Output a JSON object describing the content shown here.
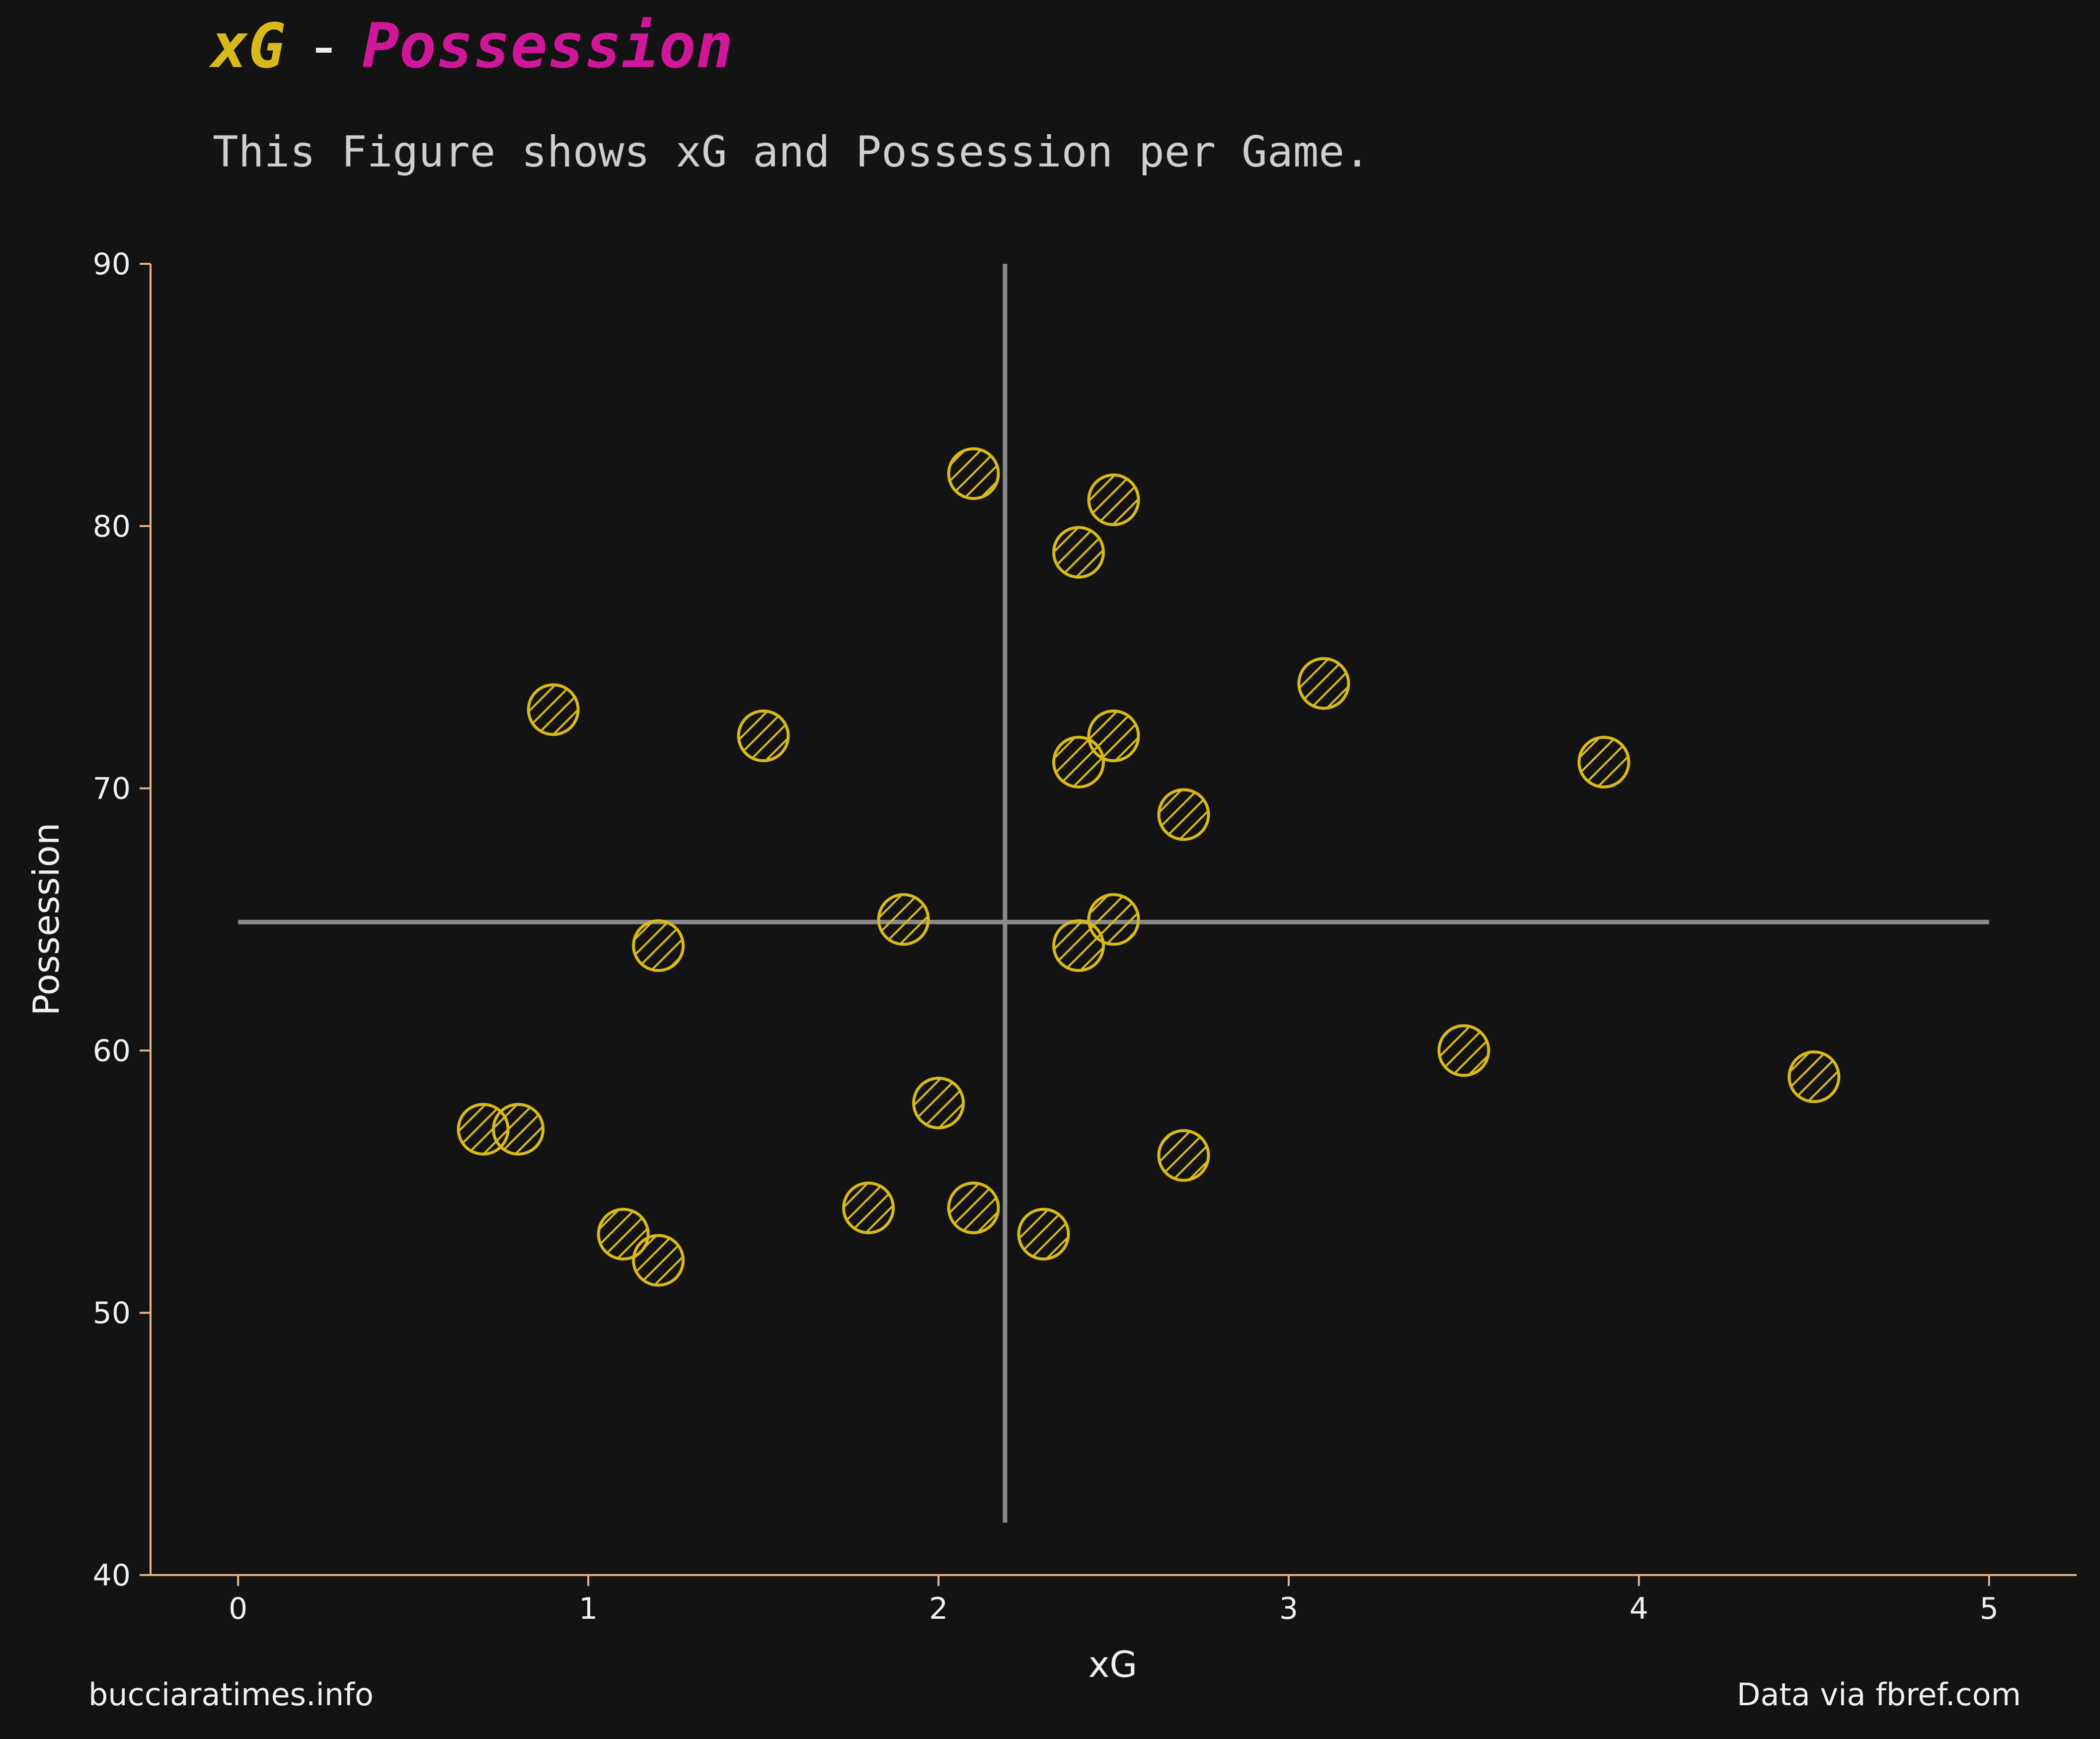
{
  "title": {
    "part1": "xG",
    "separator": "-",
    "part2": "Possession"
  },
  "subtitle": "This Figure shows xG and Possession per Game.",
  "footer": {
    "left": "bucciaratimes.info",
    "right": "Data via fbref.com"
  },
  "colors": {
    "background": "#131313",
    "accent_xg": "#d8b91c",
    "accent_possession": "#d0179a",
    "marker": "#d8b91c",
    "axis_spine": "#e6b386",
    "reference_line": "#8a8a8a",
    "text": "#f0f0f0",
    "subtitle_text": "#cfcfcf"
  },
  "chart_data": {
    "type": "scatter",
    "xlabel": "xG",
    "ylabel": "Possession",
    "xlim": [
      -0.25,
      5.25
    ],
    "ylim": [
      40,
      90
    ],
    "xticks": [
      0,
      1,
      2,
      3,
      4,
      5
    ],
    "yticks": [
      40,
      50,
      60,
      70,
      80,
      90
    ],
    "grid": false,
    "marker_style": "circle-hatched",
    "reference_lines": {
      "vertical_x": 2.19,
      "horizontal_y": 64.9
    },
    "points": [
      {
        "x": 2.1,
        "y": 82
      },
      {
        "x": 2.5,
        "y": 81
      },
      {
        "x": 2.4,
        "y": 79
      },
      {
        "x": 3.1,
        "y": 74
      },
      {
        "x": 0.9,
        "y": 73
      },
      {
        "x": 1.5,
        "y": 72
      },
      {
        "x": 2.5,
        "y": 72
      },
      {
        "x": 2.4,
        "y": 71
      },
      {
        "x": 3.9,
        "y": 71
      },
      {
        "x": 2.7,
        "y": 69
      },
      {
        "x": 1.9,
        "y": 65
      },
      {
        "x": 2.5,
        "y": 65
      },
      {
        "x": 1.2,
        "y": 64
      },
      {
        "x": 2.4,
        "y": 64
      },
      {
        "x": 3.5,
        "y": 60
      },
      {
        "x": 4.5,
        "y": 59
      },
      {
        "x": 2.0,
        "y": 58
      },
      {
        "x": 0.7,
        "y": 57
      },
      {
        "x": 0.8,
        "y": 57
      },
      {
        "x": 2.7,
        "y": 56
      },
      {
        "x": 1.8,
        "y": 54
      },
      {
        "x": 2.1,
        "y": 54
      },
      {
        "x": 1.1,
        "y": 53
      },
      {
        "x": 2.3,
        "y": 53
      },
      {
        "x": 1.2,
        "y": 52
      }
    ]
  }
}
